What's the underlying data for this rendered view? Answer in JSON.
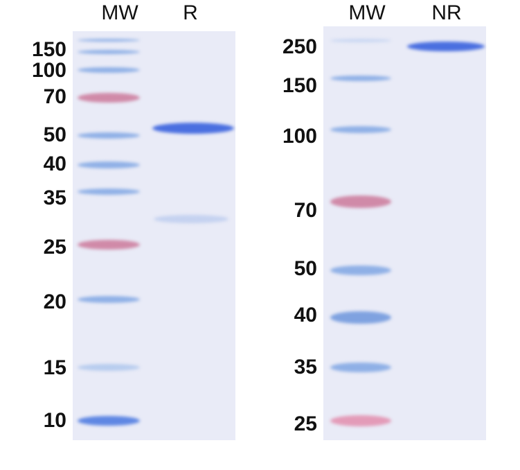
{
  "left_panel": {
    "lane_labels": [
      "MW",
      "R"
    ],
    "markers": [
      "150",
      "100",
      "70",
      "50",
      "40",
      "35",
      "25",
      "20",
      "15",
      "10"
    ]
  },
  "right_panel": {
    "lane_labels": [
      "MW",
      "NR"
    ],
    "markers": [
      "250",
      "150",
      "100",
      "70",
      "50",
      "40",
      "35",
      "25"
    ]
  },
  "colors": {
    "gel": "#e9ebf7",
    "blue_band": "#4a6fe0",
    "ladder_blue": "#8fb0e6",
    "ladder_pink": "#d08aa8"
  }
}
